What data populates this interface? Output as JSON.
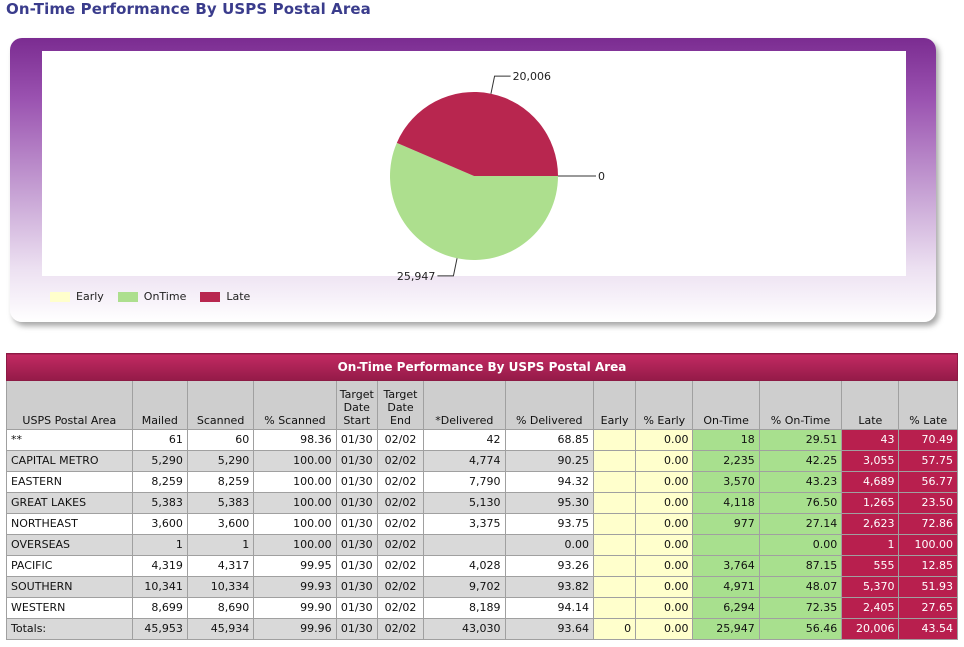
{
  "page_title": "On-Time Performance By USPS Postal Area",
  "colors": {
    "early": "#ffffcc",
    "ontime": "#addf8e",
    "late": "#b8264f"
  },
  "chart_data": {
    "type": "pie",
    "slices": [
      {
        "name": "Early",
        "value": 0,
        "label": "0"
      },
      {
        "name": "OnTime",
        "value": 25947,
        "label": "25,947"
      },
      {
        "name": "Late",
        "value": 20006,
        "label": "20,006"
      }
    ],
    "legend_position": "bottom-left"
  },
  "legend": [
    {
      "label": "Early"
    },
    {
      "label": "OnTime"
    },
    {
      "label": "Late"
    }
  ],
  "table": {
    "title": "On-Time Performance By USPS Postal Area",
    "headers": [
      "USPS Postal Area",
      "Mailed",
      "Scanned",
      "% Scanned",
      "Target Date Start",
      "Target Date End",
      "*Delivered",
      "% Delivered",
      "Early",
      "% Early",
      "On-Time",
      "% On-Time",
      "Late",
      "% Late"
    ],
    "rows": [
      [
        "**",
        "61",
        "60",
        "98.36",
        "01/30",
        "02/02",
        "42",
        "68.85",
        "",
        "0.00",
        "18",
        "29.51",
        "43",
        "70.49"
      ],
      [
        "CAPITAL METRO",
        "5,290",
        "5,290",
        "100.00",
        "01/30",
        "02/02",
        "4,774",
        "90.25",
        "",
        "0.00",
        "2,235",
        "42.25",
        "3,055",
        "57.75"
      ],
      [
        "EASTERN",
        "8,259",
        "8,259",
        "100.00",
        "01/30",
        "02/02",
        "7,790",
        "94.32",
        "",
        "0.00",
        "3,570",
        "43.23",
        "4,689",
        "56.77"
      ],
      [
        "GREAT LAKES",
        "5,383",
        "5,383",
        "100.00",
        "01/30",
        "02/02",
        "5,130",
        "95.30",
        "",
        "0.00",
        "4,118",
        "76.50",
        "1,265",
        "23.50"
      ],
      [
        "NORTHEAST",
        "3,600",
        "3,600",
        "100.00",
        "01/30",
        "02/02",
        "3,375",
        "93.75",
        "",
        "0.00",
        "977",
        "27.14",
        "2,623",
        "72.86"
      ],
      [
        "OVERSEAS",
        "1",
        "1",
        "100.00",
        "01/30",
        "02/02",
        "",
        "0.00",
        "",
        "0.00",
        "",
        "0.00",
        "1",
        "100.00"
      ],
      [
        "PACIFIC",
        "4,319",
        "4,317",
        "99.95",
        "01/30",
        "02/02",
        "4,028",
        "93.26",
        "",
        "0.00",
        "3,764",
        "87.15",
        "555",
        "12.85"
      ],
      [
        "SOUTHERN",
        "10,341",
        "10,334",
        "99.93",
        "01/30",
        "02/02",
        "9,702",
        "93.82",
        "",
        "0.00",
        "4,971",
        "48.07",
        "5,370",
        "51.93"
      ],
      [
        "WESTERN",
        "8,699",
        "8,690",
        "99.90",
        "01/30",
        "02/02",
        "8,189",
        "94.14",
        "",
        "0.00",
        "6,294",
        "72.35",
        "2,405",
        "27.65"
      ]
    ],
    "totals": [
      "Totals:",
      "45,953",
      "45,934",
      "99.96",
      "01/30",
      "02/02",
      "43,030",
      "93.64",
      "0",
      "0.00",
      "25,947",
      "56.46",
      "20,006",
      "43.54"
    ]
  }
}
